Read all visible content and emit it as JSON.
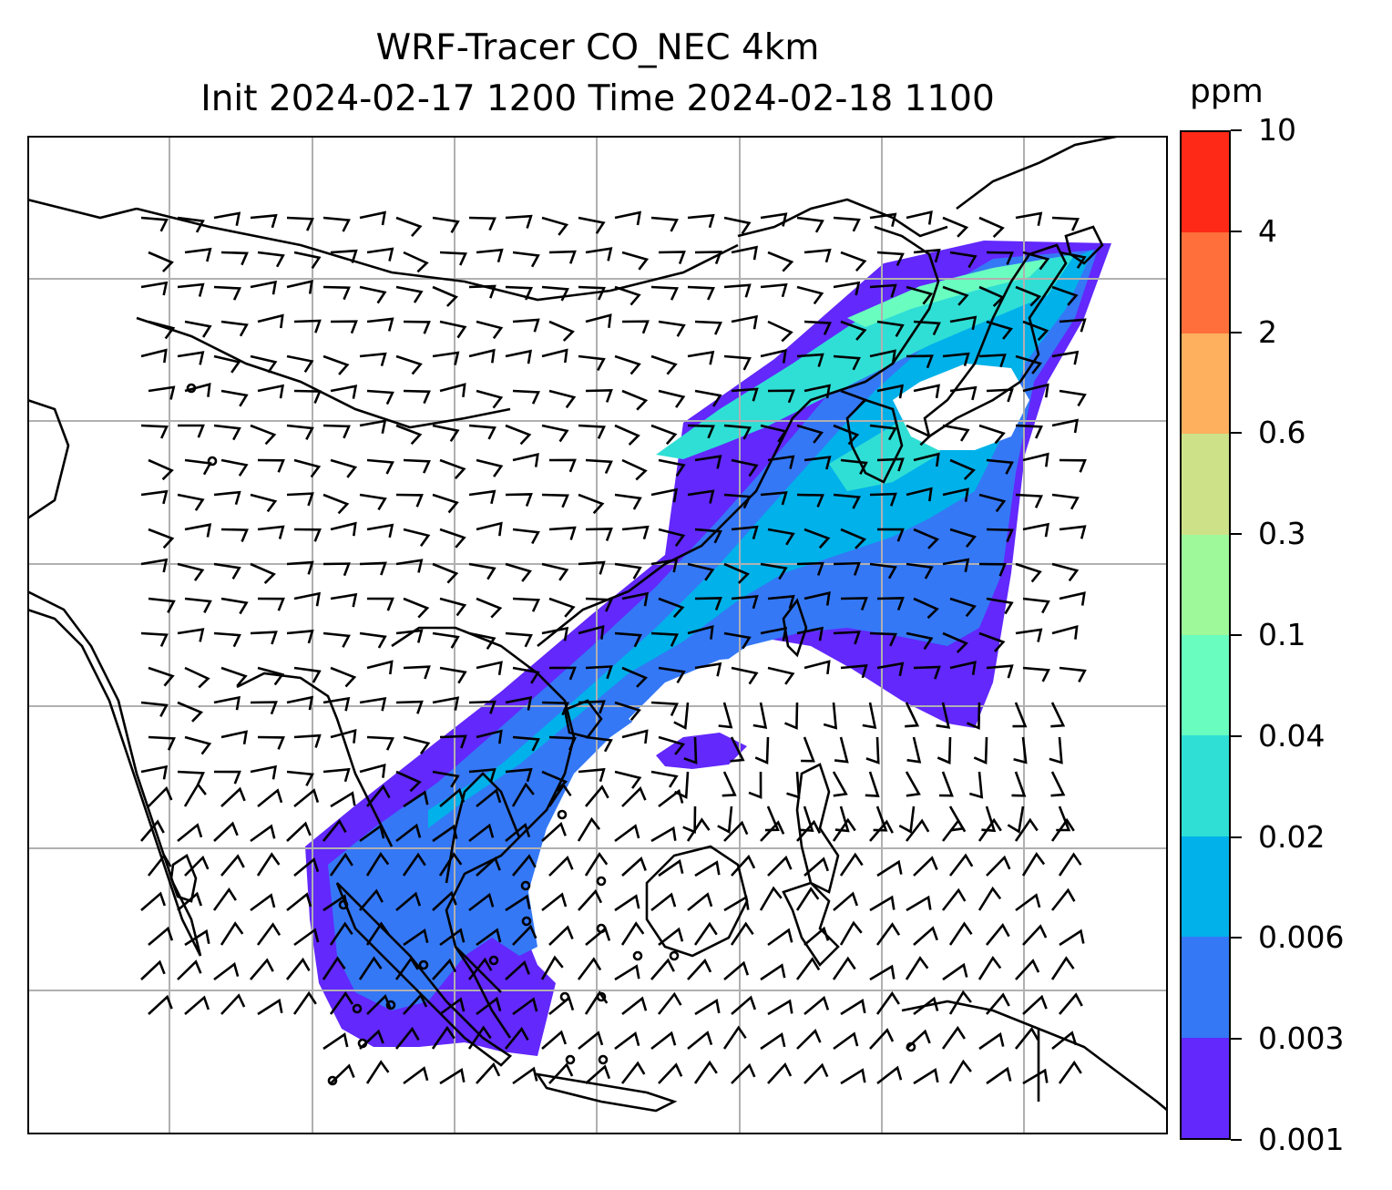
{
  "title": {
    "line1": "WRF-Tracer CO_NEC 4km",
    "line2": "Init 2024-02-17 1200 Time 2024-02-18 1100"
  },
  "colorbar": {
    "units": "ppm",
    "levels": [
      "0.001",
      "0.003",
      "0.006",
      "0.02",
      "0.04",
      "0.1",
      "0.3",
      "0.6",
      "2",
      "4",
      "10"
    ],
    "colors": [
      "#6228fc",
      "#3478f6",
      "#00b1ea",
      "#2fdfd5",
      "#6afdc0",
      "#9ef99a",
      "#cde188",
      "#ffb05f",
      "#ff6f3b",
      "#fe2916"
    ]
  },
  "map": {
    "field": "CO_NEC tracer concentration",
    "gridlines": true,
    "background": "#ffffff",
    "coastline_color": "#000000"
  }
}
